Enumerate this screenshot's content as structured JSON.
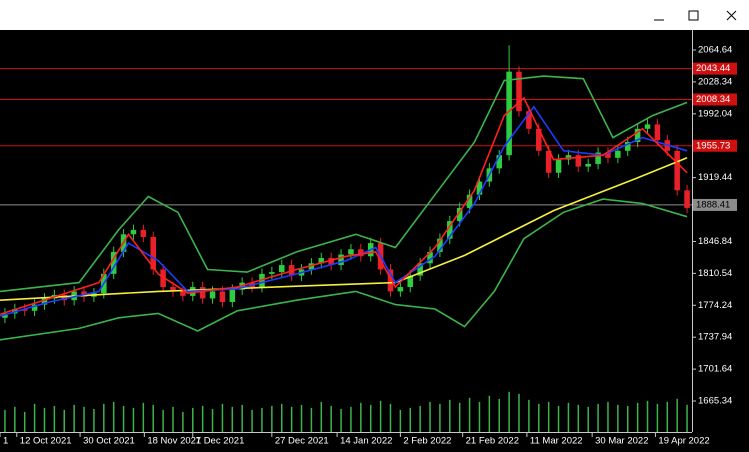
{
  "chart_data": {
    "type": "candlestick",
    "xlim": [
      0,
      70
    ],
    "xticks": [
      {
        "value": 0,
        "label": "1"
      },
      {
        "value": 1.7,
        "label": "12 Oct 2021"
      },
      {
        "value": 8.1,
        "label": "30 Oct 2021"
      },
      {
        "value": 14.6,
        "label": "18 Nov 2021"
      },
      {
        "value": 19.5,
        "label": "7 Dec 2021"
      },
      {
        "value": 27.5,
        "label": "27 Dec 2021"
      },
      {
        "value": 34.1,
        "label": "14 Jan 2022"
      },
      {
        "value": 40.5,
        "label": "2 Feb 2022"
      },
      {
        "value": 46.8,
        "label": "21 Feb 2022"
      },
      {
        "value": 53.3,
        "label": "11 Mar 2022"
      },
      {
        "value": 59.9,
        "label": "30 Mar 2022"
      },
      {
        "value": 66.3,
        "label": "19 Apr 2022"
      }
    ],
    "ylim": [
      1630.1,
      2087.4
    ],
    "yticks": [
      2064.64,
      2028.34,
      1992.04,
      1919.44,
      1846.84,
      1810.54,
      1774.24,
      1737.94,
      1701.64,
      1665.34
    ],
    "up_color": "#2ecc40",
    "down_color": "#e8202a",
    "open": [
      1760,
      1765,
      1770,
      1768,
      1775,
      1782,
      1786,
      1780,
      1790,
      1784,
      1788,
      1810,
      1835,
      1855,
      1860,
      1852,
      1815,
      1795,
      1790,
      1785,
      1795,
      1782,
      1790,
      1778,
      1792,
      1800,
      1795,
      1810,
      1812,
      1820,
      1808,
      1815,
      1822,
      1828,
      1820,
      1832,
      1838,
      1830,
      1845,
      1815,
      1790,
      1795,
      1808,
      1822,
      1835,
      1850,
      1870,
      1885,
      1900,
      1915,
      1930,
      1945,
      2040,
      1995,
      1975,
      1950,
      1925,
      1940,
      1945,
      1932,
      1935,
      1948,
      1942,
      1950,
      1960,
      1975,
      1980,
      1962,
      1950,
      1905
    ],
    "high": [
      1771,
      1776,
      1776,
      1781,
      1788,
      1792,
      1792,
      1796,
      1796,
      1794,
      1816,
      1841,
      1861,
      1866,
      1866,
      1858,
      1821,
      1801,
      1796,
      1801,
      1801,
      1796,
      1796,
      1798,
      1806,
      1806,
      1816,
      1818,
      1826,
      1826,
      1821,
      1828,
      1834,
      1834,
      1838,
      1844,
      1844,
      1851,
      1851,
      1821,
      1801,
      1814,
      1828,
      1841,
      1856,
      1876,
      1891,
      1906,
      1921,
      1936,
      1951,
      2070,
      2046,
      2001,
      1981,
      1956,
      1946,
      1951,
      1951,
      1941,
      1954,
      1954,
      1956,
      1966,
      1981,
      1986,
      1986,
      1968,
      1956,
      1911
    ],
    "low": [
      1754,
      1759,
      1762,
      1762,
      1769,
      1776,
      1774,
      1774,
      1778,
      1778,
      1782,
      1804,
      1829,
      1849,
      1846,
      1809,
      1789,
      1784,
      1779,
      1779,
      1776,
      1776,
      1772,
      1772,
      1786,
      1789,
      1789,
      1804,
      1806,
      1802,
      1802,
      1809,
      1816,
      1814,
      1814,
      1826,
      1824,
      1824,
      1809,
      1784,
      1784,
      1789,
      1802,
      1816,
      1829,
      1844,
      1864,
      1879,
      1894,
      1909,
      1924,
      1939,
      1989,
      1969,
      1944,
      1919,
      1919,
      1934,
      1926,
      1926,
      1929,
      1936,
      1936,
      1944,
      1954,
      1969,
      1956,
      1944,
      1899,
      1879
    ],
    "close": [
      1765,
      1770,
      1768,
      1775,
      1782,
      1786,
      1780,
      1790,
      1784,
      1788,
      1810,
      1835,
      1855,
      1860,
      1852,
      1815,
      1795,
      1790,
      1785,
      1795,
      1782,
      1790,
      1778,
      1792,
      1800,
      1795,
      1810,
      1812,
      1820,
      1808,
      1815,
      1822,
      1828,
      1820,
      1832,
      1838,
      1830,
      1845,
      1815,
      1790,
      1795,
      1808,
      1822,
      1835,
      1850,
      1870,
      1885,
      1900,
      1915,
      1930,
      1945,
      2040,
      1995,
      1975,
      1950,
      1925,
      1940,
      1945,
      1932,
      1935,
      1948,
      1942,
      1950,
      1960,
      1975,
      1980,
      1962,
      1950,
      1905,
      1885
    ],
    "lines": [
      {
        "color": "#3cb44b",
        "x": [
          0,
          8,
          12,
          15,
          18,
          21,
          25,
          30,
          36,
          40,
          44,
          48,
          51,
          55,
          59,
          62,
          66,
          69.5
        ],
        "values": [
          1790,
          1800,
          1860,
          1898,
          1880,
          1815,
          1812,
          1835,
          1855,
          1840,
          1900,
          1960,
          2030,
          2035,
          2032,
          1965,
          1990,
          2005
        ]
      },
      {
        "color": "#3cb44b",
        "x": [
          0,
          8,
          12,
          16,
          20,
          24,
          30,
          36,
          40,
          44,
          47,
          50,
          53,
          57,
          61,
          65,
          69.5
        ],
        "values": [
          1735,
          1748,
          1760,
          1765,
          1745,
          1768,
          1780,
          1790,
          1775,
          1770,
          1750,
          1790,
          1850,
          1880,
          1895,
          1890,
          1875
        ]
      },
      {
        "color": "#f5f03c",
        "x": [
          0,
          16,
          30,
          40,
          47,
          56,
          64,
          69.5
        ],
        "values": [
          1780,
          1790,
          1796,
          1800,
          1831,
          1882,
          1917,
          1942
        ]
      },
      {
        "color": "#1e3cff",
        "x": [
          0,
          5,
          10,
          13,
          16,
          19,
          24,
          30,
          35,
          38,
          40,
          44,
          48,
          51,
          54,
          57,
          61,
          65,
          69.5
        ],
        "values": [
          1762,
          1778,
          1790,
          1845,
          1825,
          1790,
          1793,
          1810,
          1825,
          1840,
          1800,
          1830,
          1890,
          1955,
          2000,
          1950,
          1945,
          1965,
          1950
        ]
      },
      {
        "color": "#ff2020",
        "x": [
          0,
          5,
          10,
          13,
          16,
          19,
          24,
          30,
          35,
          38,
          40,
          44,
          48,
          51,
          53,
          56,
          61,
          65,
          69.5
        ],
        "values": [
          1764,
          1782,
          1800,
          1855,
          1810,
          1788,
          1795,
          1815,
          1830,
          1835,
          1795,
          1840,
          1905,
          1990,
          2010,
          1940,
          1945,
          1975,
          1925
        ]
      }
    ],
    "levels": [
      {
        "value": 2043.44,
        "color": "#d01010"
      },
      {
        "value": 2008.34,
        "color": "#d01010"
      },
      {
        "value": 1955.73,
        "color": "#d01010"
      },
      {
        "value": 1888.41,
        "color": "#8c8c8c"
      }
    ],
    "volume": {
      "color": "#3cb44b",
      "ylim": [
        0,
        400
      ],
      "values": [
        22,
        25,
        20,
        28,
        24,
        26,
        22,
        27,
        25,
        23,
        28,
        30,
        26,
        24,
        29,
        27,
        22,
        25,
        20,
        24,
        26,
        23,
        28,
        25,
        27,
        22,
        24,
        26,
        28,
        25,
        27,
        24,
        30,
        26,
        23,
        25,
        29,
        27,
        31,
        28,
        22,
        24,
        26,
        30,
        28,
        32,
        29,
        34,
        30,
        36,
        33,
        40,
        38,
        32,
        28,
        30,
        26,
        29,
        27,
        25,
        28,
        30,
        27,
        26,
        29,
        31,
        28,
        30,
        33,
        27
      ]
    }
  }
}
